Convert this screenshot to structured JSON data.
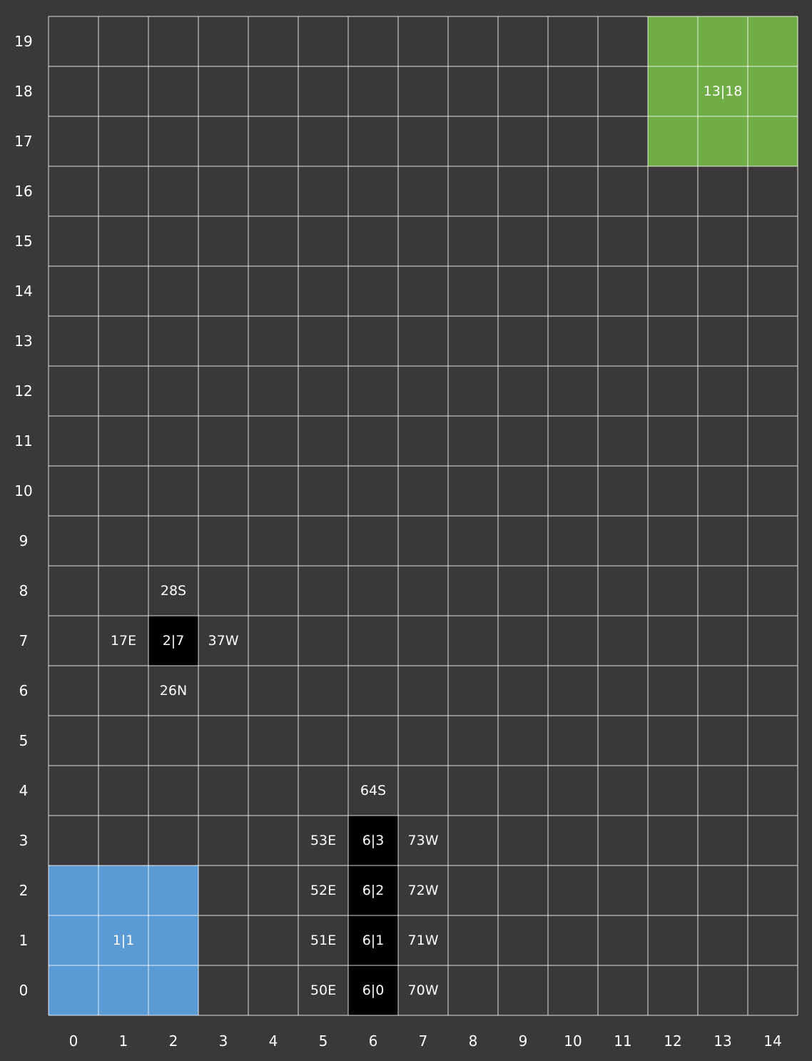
{
  "grid": {
    "cols": 15,
    "rows": 20,
    "background": "#3a3839",
    "line_color": "#ffffff"
  },
  "x_axis_labels": [
    "0",
    "1",
    "2",
    "3",
    "4",
    "5",
    "6",
    "7",
    "8",
    "9",
    "10",
    "11",
    "12",
    "13",
    "14"
  ],
  "y_axis_labels": [
    "0",
    "1",
    "2",
    "3",
    "4",
    "5",
    "6",
    "7",
    "8",
    "9",
    "10",
    "11",
    "12",
    "13",
    "14",
    "15",
    "16",
    "17",
    "18",
    "19"
  ],
  "zones": [
    {
      "name": "start-zone",
      "color": "#5b9bd5",
      "col_from": 0,
      "col_to": 2,
      "row_from": 0,
      "row_to": 2,
      "label": "1|1",
      "label_col": 1,
      "label_row": 1
    },
    {
      "name": "goal-zone",
      "color": "#70ad47",
      "col_from": 12,
      "col_to": 14,
      "row_from": 17,
      "row_to": 19,
      "label": "13|18",
      "label_col": 13,
      "label_row": 18
    }
  ],
  "obstacles": [
    {
      "col": 2,
      "row": 7,
      "label": "2|7",
      "color": "#000000"
    },
    {
      "col": 6,
      "row": 3,
      "label": "6|3",
      "color": "#000000"
    },
    {
      "col": 6,
      "row": 2,
      "label": "6|2",
      "color": "#000000"
    },
    {
      "col": 6,
      "row": 1,
      "label": "6|1",
      "color": "#000000"
    },
    {
      "col": 6,
      "row": 0,
      "label": "6|0",
      "color": "#000000"
    }
  ],
  "cell_labels": [
    {
      "col": 2,
      "row": 8,
      "text": "28S"
    },
    {
      "col": 1,
      "row": 7,
      "text": "17E"
    },
    {
      "col": 3,
      "row": 7,
      "text": "37W"
    },
    {
      "col": 2,
      "row": 6,
      "text": "26N"
    },
    {
      "col": 6,
      "row": 4,
      "text": "64S"
    },
    {
      "col": 5,
      "row": 3,
      "text": "53E"
    },
    {
      "col": 7,
      "row": 3,
      "text": "73W"
    },
    {
      "col": 5,
      "row": 2,
      "text": "52E"
    },
    {
      "col": 7,
      "row": 2,
      "text": "72W"
    },
    {
      "col": 5,
      "row": 1,
      "text": "51E"
    },
    {
      "col": 7,
      "row": 1,
      "text": "71W"
    },
    {
      "col": 5,
      "row": 0,
      "text": "50E"
    },
    {
      "col": 7,
      "row": 0,
      "text": "70W"
    }
  ]
}
